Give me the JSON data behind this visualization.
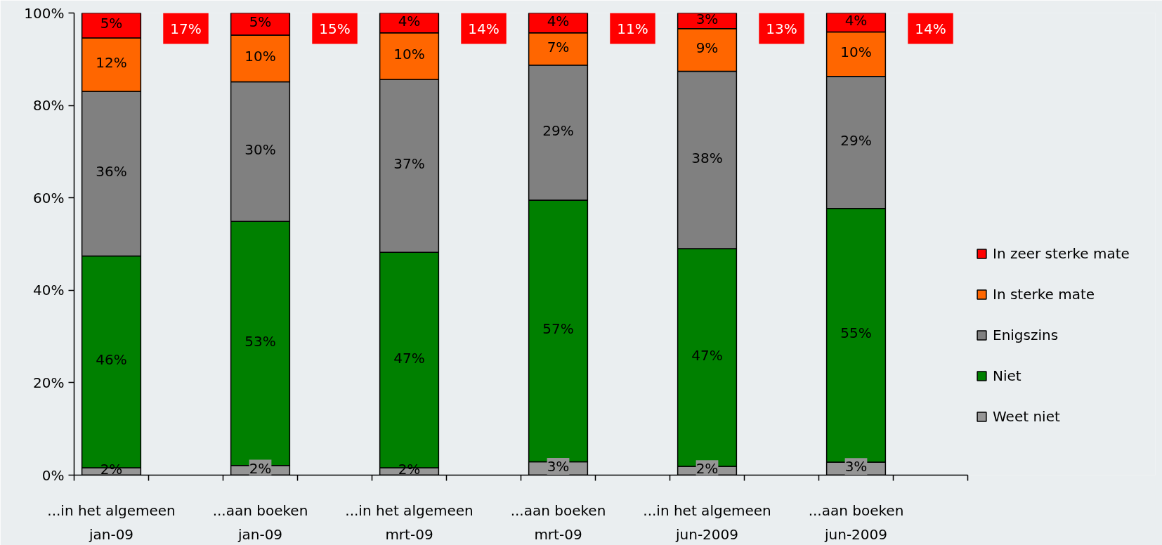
{
  "chart_data": {
    "type": "bar",
    "stacked": true,
    "categories": [
      "...in het algemeen\njan-09",
      null,
      "...aan boeken\njan-09",
      null,
      "...in het algemeen\nmrt-09",
      null,
      "...aan boeken\nmrt-09",
      null,
      "...in het algemeen\njun-2009",
      null,
      "...aan boeken\njun-2009",
      null
    ],
    "ylim": [
      0,
      100
    ],
    "yticks": [
      {
        "value": 0,
        "label": "0%"
      },
      {
        "value": 20,
        "label": "20%"
      },
      {
        "value": 40,
        "label": "40%"
      },
      {
        "value": 60,
        "label": "60%"
      },
      {
        "value": 80,
        "label": "80%"
      },
      {
        "value": 100,
        "label": "100%"
      }
    ],
    "legend": "right",
    "series": [
      {
        "name": "Weet niet",
        "color": "#969696",
        "values": [
          1.6,
          null,
          2.1,
          null,
          1.6,
          null,
          2.9,
          null,
          1.9,
          null,
          2.8,
          null
        ],
        "value_labels": [
          "2%",
          null,
          "2%",
          null,
          "2%",
          null,
          "3%",
          null,
          "2%",
          null,
          "3%",
          null
        ]
      },
      {
        "name": "Niet",
        "color": "#008000",
        "values": [
          45.8,
          null,
          52.8,
          null,
          46.6,
          null,
          56.6,
          null,
          47.1,
          null,
          54.9,
          null
        ],
        "value_labels": [
          "46%",
          null,
          "53%",
          null,
          "47%",
          null,
          "57%",
          null,
          "47%",
          null,
          "55%",
          null
        ]
      },
      {
        "name": "Enigszins",
        "color": "#808080",
        "values": [
          35.6,
          null,
          30.2,
          null,
          37.4,
          null,
          29.2,
          null,
          38.4,
          null,
          28.6,
          null
        ],
        "value_labels": [
          "36%",
          null,
          "30%",
          null,
          "37%",
          null,
          "29%",
          null,
          "38%",
          null,
          "29%",
          null
        ]
      },
      {
        "name": "In sterke mate",
        "color": "#ff6600",
        "values": [
          11.6,
          null,
          10.1,
          null,
          10.1,
          null,
          7.0,
          null,
          9.2,
          null,
          9.6,
          null
        ],
        "value_labels": [
          "12%",
          null,
          "10%",
          null,
          "10%",
          null,
          "7%",
          null,
          "9%",
          null,
          "10%",
          null
        ]
      },
      {
        "name": "In zeer sterke mate",
        "color": "#ff0000",
        "values": [
          5.4,
          null,
          4.8,
          null,
          4.3,
          null,
          4.3,
          null,
          3.4,
          null,
          4.1,
          null
        ],
        "value_labels": [
          "5%",
          null,
          "5%",
          null,
          "4%",
          null,
          "4%",
          null,
          "3%",
          null,
          "4%",
          null
        ]
      }
    ],
    "annotations": [
      "17%",
      "15%",
      "14%",
      "11%",
      "13%",
      "14%"
    ]
  }
}
